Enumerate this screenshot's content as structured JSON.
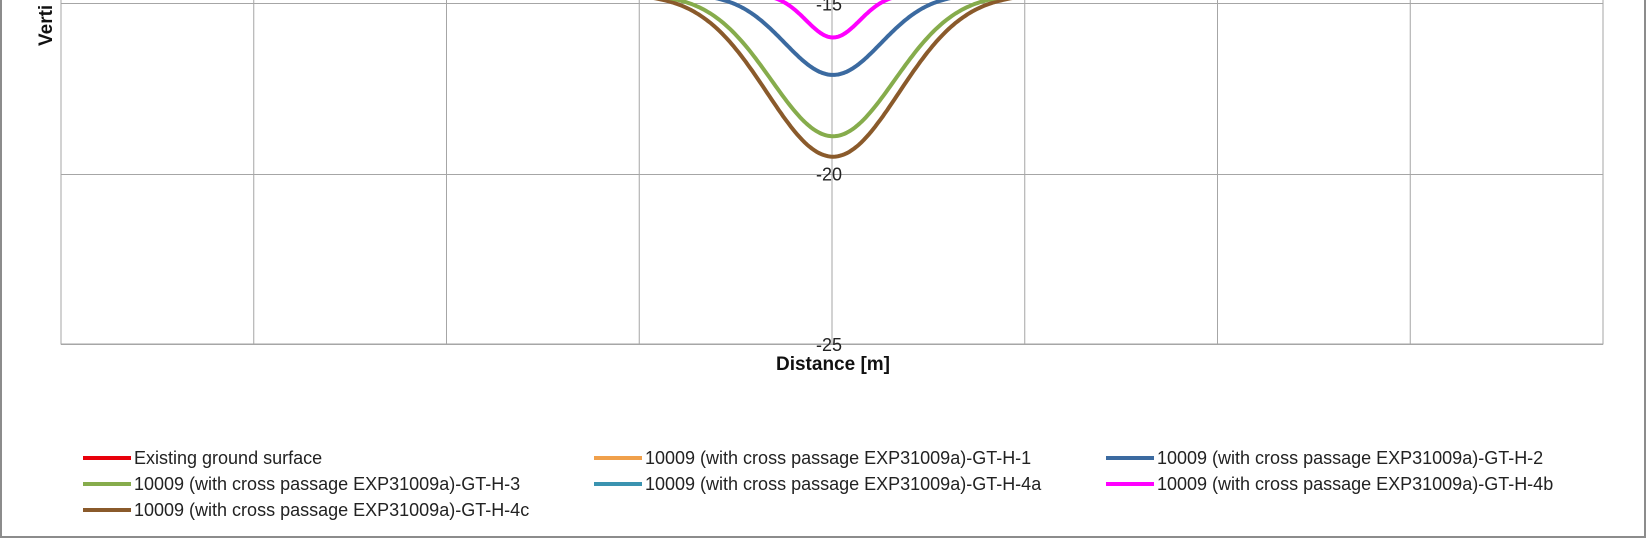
{
  "chart_data": {
    "type": "line",
    "xlabel": "Distance [m]",
    "ylabel": "Verti",
    "y_ticks": [
      "-15",
      "-20",
      "-25"
    ],
    "ylim": [
      -25,
      -15
    ],
    "grid": true,
    "legend_position": "bottom",
    "series": [
      {
        "name": "Existing ground surface",
        "color": "#e8000b",
        "trough": null
      },
      {
        "name": "10009 (with cross passage EXP31009a)-GT-H-1",
        "color": "#f0a04b",
        "trough": null
      },
      {
        "name": "10009 (with cross passage EXP31009a)-GT-H-2",
        "color": "#3b6aa0",
        "trough": -17.1
      },
      {
        "name": "10009 (with cross passage EXP31009a)-GT-H-3",
        "color": "#86ac4c",
        "trough": -18.9
      },
      {
        "name": "10009 (with cross passage EXP31009a)-GT-H-4a",
        "color": "#3a93b0",
        "trough": null
      },
      {
        "name": "10009 (with cross passage EXP31009a)-GT-H-4b",
        "color": "#ff00ff",
        "trough": -16.0
      },
      {
        "name": "10009 (with cross passage EXP31009a)-GT-H-4c",
        "color": "#8a5a2b",
        "trough": -19.5
      }
    ]
  }
}
